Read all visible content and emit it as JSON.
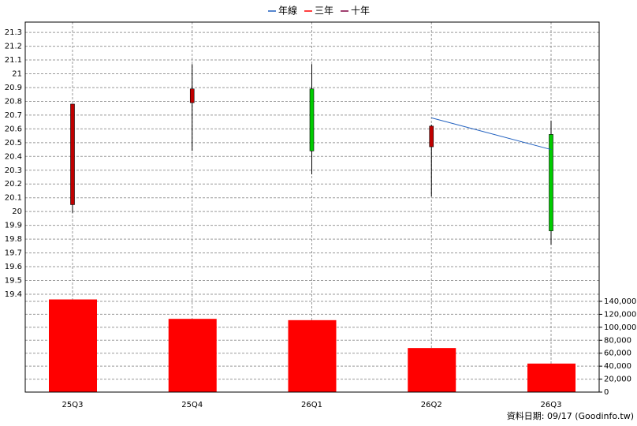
{
  "chart_data": {
    "type": "candlestick",
    "categories": [
      "25Q3",
      "25Q4",
      "26Q1",
      "26Q2",
      "26Q3"
    ],
    "candles": {
      "open": [
        20.05,
        20.79,
        20.89,
        20.47,
        20.56
      ],
      "high": [
        20.78,
        21.07,
        21.07,
        20.63,
        20.66
      ],
      "low": [
        19.99,
        20.44,
        20.27,
        20.11,
        19.76
      ],
      "close": [
        20.78,
        20.89,
        20.44,
        20.62,
        19.86
      ],
      "up_color": "#c00000",
      "down_color": "#00cc00"
    },
    "series": [
      {
        "name": "年線",
        "color": "#1f5fbf",
        "values": [
          null,
          null,
          null,
          20.68,
          20.45
        ]
      },
      {
        "name": "三年",
        "color": "#ff0000",
        "values": [
          null,
          null,
          null,
          null,
          null
        ]
      },
      {
        "name": "十年",
        "color": "#800040",
        "values": [
          null,
          null,
          null,
          null,
          null
        ]
      }
    ],
    "volume": {
      "values": [
        143000,
        113000,
        111000,
        68000,
        44000
      ],
      "color": "#ff0000",
      "axis": "y2"
    },
    "ylim": [
      18.69,
      21.375
    ],
    "yticks": [
      19.4,
      19.5,
      19.6,
      19.7,
      19.8,
      19.9,
      20,
      20.1,
      20.2,
      20.3,
      20.4,
      20.5,
      20.6,
      20.7,
      20.8,
      20.9,
      21,
      21.1,
      21.2,
      21.3
    ],
    "y2lim": [
      0,
      571000
    ],
    "y2ticks": [
      0,
      {
        "value": 20000,
        "label": "20,000"
      },
      {
        "value": 40000,
        "label": "40,000"
      },
      {
        "value": 60000,
        "label": "60,000"
      },
      {
        "value": 80000,
        "label": "80,000"
      },
      {
        "value": 100000,
        "label": "100,000"
      },
      {
        "value": 120000,
        "label": "120,000"
      },
      {
        "value": 140000,
        "label": "140,000"
      }
    ],
    "grid": true,
    "legend": "top",
    "note": "資料日期: 09/17  (Goodinfo.tw)"
  }
}
